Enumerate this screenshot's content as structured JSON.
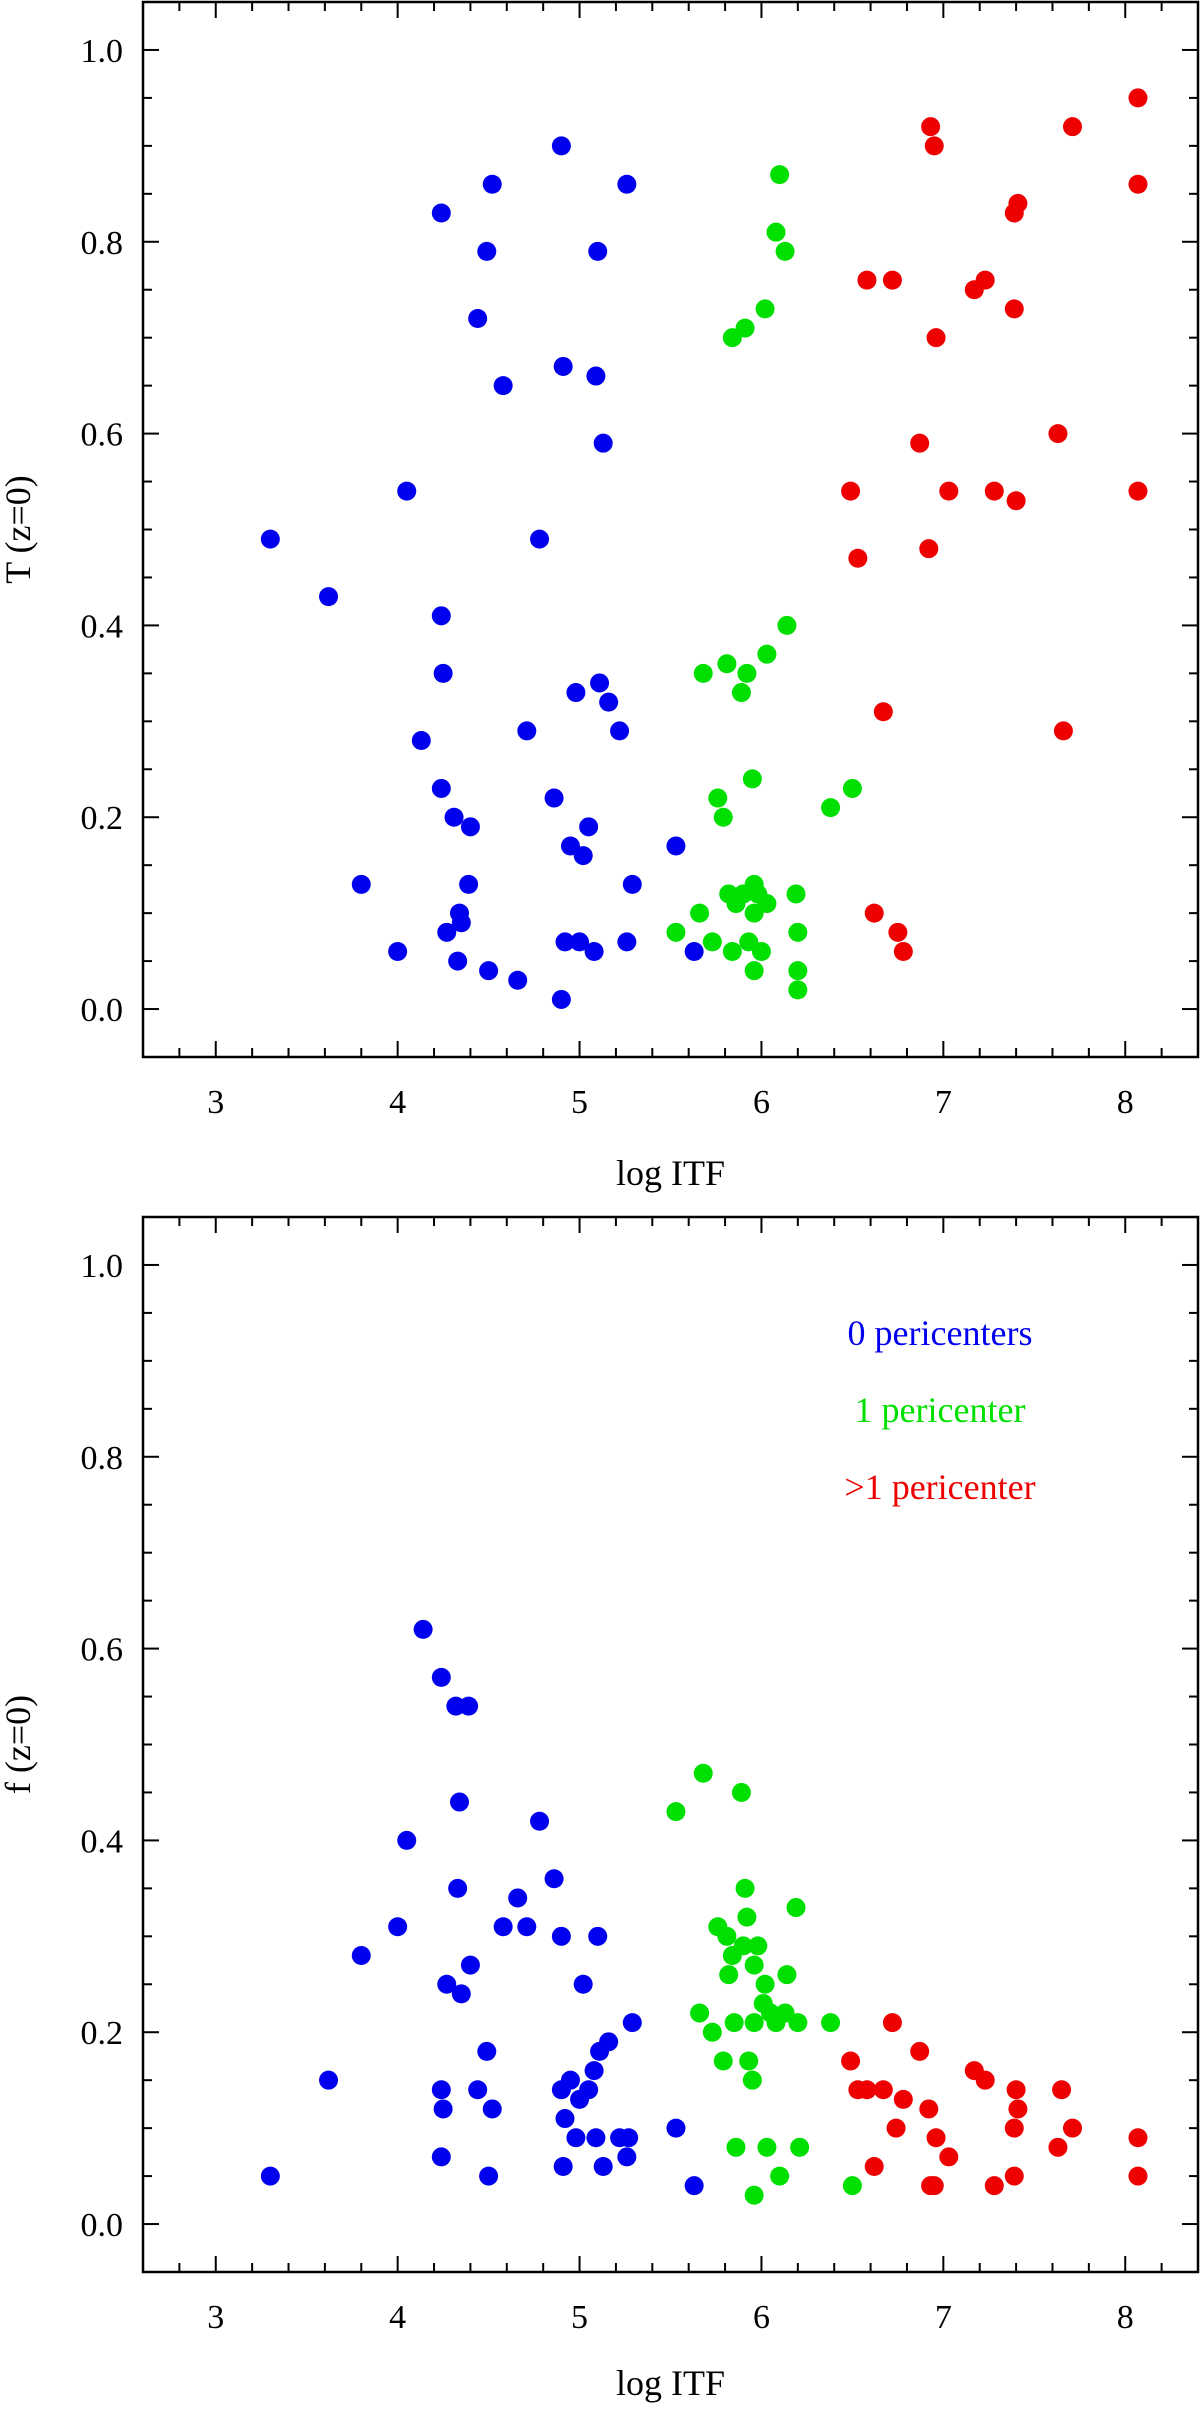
{
  "colors": {
    "blue": "#0000ee",
    "green": "#00e000",
    "red": "#ee0000"
  },
  "chart_data": [
    {
      "type": "scatter",
      "xlabel": "log ITF",
      "ylabel": "T (z=0)",
      "xlim": [
        2.6,
        8.4
      ],
      "ylim": [
        -0.05,
        1.05
      ],
      "xticks": [
        "3",
        "4",
        "5",
        "6",
        "7",
        "8"
      ],
      "yticks": [
        "0.0",
        "0.2",
        "0.4",
        "0.6",
        "0.8",
        "1.0"
      ],
      "series": [
        {
          "name": "0 pericenters",
          "color": "#0000ee",
          "points": [
            [
              3.3,
              0.49
            ],
            [
              3.62,
              0.43
            ],
            [
              3.8,
              0.13
            ],
            [
              4.0,
              0.06
            ],
            [
              4.05,
              0.54
            ],
            [
              4.13,
              0.28
            ],
            [
              4.24,
              0.83
            ],
            [
              4.24,
              0.41
            ],
            [
              4.25,
              0.35
            ],
            [
              4.24,
              0.23
            ],
            [
              4.27,
              0.08
            ],
            [
              4.31,
              0.2
            ],
            [
              4.33,
              0.05
            ],
            [
              4.34,
              0.1
            ],
            [
              4.35,
              0.09
            ],
            [
              4.39,
              0.13
            ],
            [
              4.4,
              0.19
            ],
            [
              4.44,
              0.72
            ],
            [
              4.49,
              0.79
            ],
            [
              4.52,
              0.86
            ],
            [
              4.5,
              0.04
            ],
            [
              4.58,
              0.65
            ],
            [
              4.66,
              0.03
            ],
            [
              4.71,
              0.29
            ],
            [
              4.78,
              0.49
            ],
            [
              4.86,
              0.22
            ],
            [
              4.9,
              0.9
            ],
            [
              4.91,
              0.67
            ],
            [
              4.9,
              0.01
            ],
            [
              4.92,
              0.07
            ],
            [
              4.95,
              0.17
            ],
            [
              4.98,
              0.33
            ],
            [
              5.0,
              0.07
            ],
            [
              5.02,
              0.16
            ],
            [
              5.05,
              0.19
            ],
            [
              5.08,
              0.06
            ],
            [
              5.09,
              0.66
            ],
            [
              5.1,
              0.79
            ],
            [
              5.11,
              0.34
            ],
            [
              5.13,
              0.59
            ],
            [
              5.16,
              0.32
            ],
            [
              5.22,
              0.29
            ],
            [
              5.26,
              0.86
            ],
            [
              5.26,
              0.07
            ],
            [
              5.29,
              0.13
            ],
            [
              5.53,
              0.17
            ],
            [
              5.63,
              0.06
            ]
          ]
        },
        {
          "name": "1 pericenter",
          "color": "#00e000",
          "points": [
            [
              5.53,
              0.08
            ],
            [
              5.66,
              0.1
            ],
            [
              5.68,
              0.35
            ],
            [
              5.73,
              0.07
            ],
            [
              5.76,
              0.22
            ],
            [
              5.79,
              0.2
            ],
            [
              5.81,
              0.36
            ],
            [
              5.82,
              0.12
            ],
            [
              5.84,
              0.7
            ],
            [
              5.84,
              0.06
            ],
            [
              5.86,
              0.11
            ],
            [
              5.89,
              0.33
            ],
            [
              5.9,
              0.12
            ],
            [
              5.91,
              0.71
            ],
            [
              5.92,
              0.35
            ],
            [
              5.93,
              0.07
            ],
            [
              5.95,
              0.24
            ],
            [
              5.96,
              0.13
            ],
            [
              5.96,
              0.04
            ],
            [
              5.96,
              0.1
            ],
            [
              5.98,
              0.12
            ],
            [
              6.0,
              0.06
            ],
            [
              6.02,
              0.73
            ],
            [
              6.03,
              0.37
            ],
            [
              6.03,
              0.11
            ],
            [
              6.08,
              0.81
            ],
            [
              6.1,
              0.87
            ],
            [
              6.13,
              0.79
            ],
            [
              6.14,
              0.4
            ],
            [
              6.19,
              0.12
            ],
            [
              6.2,
              0.08
            ],
            [
              6.2,
              0.04
            ],
            [
              6.2,
              0.02
            ],
            [
              6.38,
              0.21
            ],
            [
              6.5,
              0.23
            ]
          ]
        },
        {
          "name": ">1 pericenter",
          "color": "#ee0000",
          "points": [
            [
              6.49,
              0.54
            ],
            [
              6.53,
              0.47
            ],
            [
              6.58,
              0.76
            ],
            [
              6.62,
              0.1
            ],
            [
              6.67,
              0.31
            ],
            [
              6.72,
              0.76
            ],
            [
              6.75,
              0.08
            ],
            [
              6.78,
              0.06
            ],
            [
              6.87,
              0.59
            ],
            [
              6.92,
              0.48
            ],
            [
              6.93,
              0.92
            ],
            [
              6.95,
              0.9
            ],
            [
              6.96,
              0.7
            ],
            [
              7.03,
              0.54
            ],
            [
              7.17,
              0.75
            ],
            [
              7.23,
              0.76
            ],
            [
              7.28,
              0.54
            ],
            [
              7.39,
              0.73
            ],
            [
              7.39,
              0.83
            ],
            [
              7.41,
              0.84
            ],
            [
              7.4,
              0.53
            ],
            [
              7.63,
              0.6
            ],
            [
              7.66,
              0.29
            ],
            [
              7.71,
              0.92
            ],
            [
              8.07,
              0.95
            ],
            [
              8.07,
              0.86
            ],
            [
              8.07,
              0.54
            ]
          ]
        }
      ]
    },
    {
      "type": "scatter",
      "xlabel": "log ITF",
      "ylabel": "f (z=0)",
      "xlim": [
        2.6,
        8.4
      ],
      "ylim": [
        -0.05,
        1.05
      ],
      "xticks": [
        "3",
        "4",
        "5",
        "6",
        "7",
        "8"
      ],
      "yticks": [
        "0.0",
        "0.2",
        "0.4",
        "0.6",
        "0.8",
        "1.0"
      ],
      "legend": {
        "placement": "top-right",
        "entries": [
          {
            "label": "0 pericenters",
            "color": "#0000ee"
          },
          {
            "label": "1 pericenter",
            "color": "#00e000"
          },
          {
            "label": ">1 pericenter",
            "color": "#ee0000"
          }
        ]
      },
      "series": [
        {
          "name": "0 pericenters",
          "color": "#0000ee",
          "points": [
            [
              3.3,
              0.05
            ],
            [
              3.62,
              0.15
            ],
            [
              3.8,
              0.28
            ],
            [
              4.0,
              0.31
            ],
            [
              4.05,
              0.4
            ],
            [
              4.14,
              0.62
            ],
            [
              4.24,
              0.57
            ],
            [
              4.24,
              0.14
            ],
            [
              4.25,
              0.12
            ],
            [
              4.24,
              0.07
            ],
            [
              4.27,
              0.25
            ],
            [
              4.32,
              0.54
            ],
            [
              4.33,
              0.35
            ],
            [
              4.34,
              0.44
            ],
            [
              4.35,
              0.24
            ],
            [
              4.39,
              0.54
            ],
            [
              4.4,
              0.27
            ],
            [
              4.44,
              0.14
            ],
            [
              4.49,
              0.18
            ],
            [
              4.5,
              0.05
            ],
            [
              4.52,
              0.12
            ],
            [
              4.58,
              0.31
            ],
            [
              4.66,
              0.34
            ],
            [
              4.71,
              0.31
            ],
            [
              4.78,
              0.42
            ],
            [
              4.86,
              0.36
            ],
            [
              4.9,
              0.3
            ],
            [
              4.9,
              0.14
            ],
            [
              4.91,
              0.06
            ],
            [
              4.92,
              0.11
            ],
            [
              4.95,
              0.15
            ],
            [
              4.98,
              0.09
            ],
            [
              5.0,
              0.13
            ],
            [
              5.02,
              0.25
            ],
            [
              5.05,
              0.14
            ],
            [
              5.08,
              0.16
            ],
            [
              5.09,
              0.09
            ],
            [
              5.1,
              0.3
            ],
            [
              5.11,
              0.18
            ],
            [
              5.13,
              0.06
            ],
            [
              5.16,
              0.19
            ],
            [
              5.22,
              0.09
            ],
            [
              5.26,
              0.07
            ],
            [
              5.27,
              0.09
            ],
            [
              5.29,
              0.21
            ],
            [
              5.53,
              0.1
            ],
            [
              5.63,
              0.04
            ]
          ]
        },
        {
          "name": "1 pericenter",
          "color": "#00e000",
          "points": [
            [
              5.53,
              0.43
            ],
            [
              5.66,
              0.22
            ],
            [
              5.68,
              0.47
            ],
            [
              5.73,
              0.2
            ],
            [
              5.76,
              0.31
            ],
            [
              5.79,
              0.17
            ],
            [
              5.81,
              0.3
            ],
            [
              5.82,
              0.26
            ],
            [
              5.84,
              0.28
            ],
            [
              5.85,
              0.21
            ],
            [
              5.86,
              0.08
            ],
            [
              5.89,
              0.45
            ],
            [
              5.9,
              0.29
            ],
            [
              5.91,
              0.35
            ],
            [
              5.92,
              0.32
            ],
            [
              5.93,
              0.17
            ],
            [
              5.95,
              0.15
            ],
            [
              5.96,
              0.21
            ],
            [
              5.96,
              0.03
            ],
            [
              5.96,
              0.27
            ],
            [
              5.98,
              0.29
            ],
            [
              6.01,
              0.23
            ],
            [
              6.02,
              0.25
            ],
            [
              6.03,
              0.08
            ],
            [
              6.05,
              0.22
            ],
            [
              6.08,
              0.21
            ],
            [
              6.1,
              0.05
            ],
            [
              6.14,
              0.26
            ],
            [
              6.13,
              0.22
            ],
            [
              6.19,
              0.33
            ],
            [
              6.2,
              0.21
            ],
            [
              6.21,
              0.08
            ],
            [
              6.38,
              0.21
            ],
            [
              6.5,
              0.04
            ]
          ]
        },
        {
          "name": ">1 pericenter",
          "color": "#ee0000",
          "points": [
            [
              6.49,
              0.17
            ],
            [
              6.53,
              0.14
            ],
            [
              6.58,
              0.14
            ],
            [
              6.62,
              0.06
            ],
            [
              6.67,
              0.14
            ],
            [
              6.72,
              0.21
            ],
            [
              6.74,
              0.1
            ],
            [
              6.78,
              0.13
            ],
            [
              6.87,
              0.18
            ],
            [
              6.92,
              0.12
            ],
            [
              6.93,
              0.04
            ],
            [
              6.95,
              0.04
            ],
            [
              6.96,
              0.09
            ],
            [
              7.03,
              0.07
            ],
            [
              7.17,
              0.16
            ],
            [
              7.23,
              0.15
            ],
            [
              7.28,
              0.04
            ],
            [
              7.39,
              0.05
            ],
            [
              7.39,
              0.1
            ],
            [
              7.4,
              0.14
            ],
            [
              7.41,
              0.12
            ],
            [
              7.63,
              0.08
            ],
            [
              7.65,
              0.14
            ],
            [
              7.71,
              0.1
            ],
            [
              8.07,
              0.09
            ],
            [
              8.07,
              0.05
            ]
          ]
        }
      ]
    }
  ]
}
